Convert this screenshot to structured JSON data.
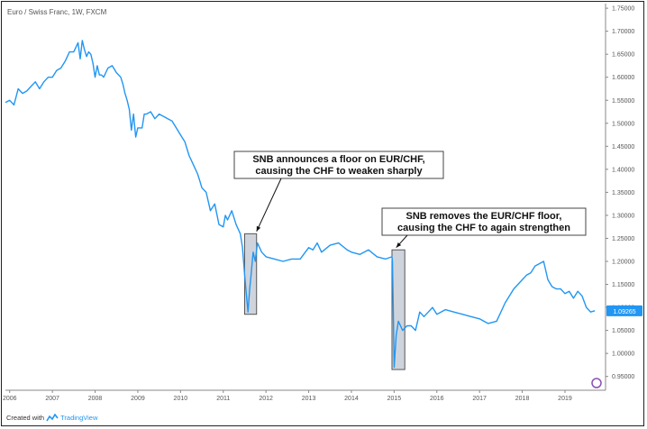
{
  "header": {
    "title": "Euro / Swiss Franc, 1W, FXCM"
  },
  "footer": {
    "created_with": "Created with",
    "brand": "TradingView"
  },
  "colors": {
    "line": "#2196f3",
    "box_fill": "#cfd4dc",
    "box_stroke": "#555555",
    "price_label_bg": "#2196f3"
  },
  "chart_data": {
    "type": "line",
    "title": "Euro / Swiss Franc, 1W, FXCM",
    "xlabel": "",
    "ylabel": "",
    "x_ticks": [
      "2006",
      "2007",
      "2008",
      "2009",
      "2010",
      "2011",
      "2012",
      "2013",
      "2014",
      "2015",
      "2016",
      "2017",
      "2018",
      "2019"
    ],
    "y_ticks": [
      "1.75000",
      "1.70000",
      "1.65000",
      "1.60000",
      "1.55000",
      "1.50000",
      "1.45000",
      "1.40000",
      "1.35000",
      "1.30000",
      "1.25000",
      "1.20000",
      "1.15000",
      "1.10000",
      "1.05000",
      "1.00000",
      "0.95000"
    ],
    "ylim": [
      0.92,
      1.76
    ],
    "xlim": [
      2005.9,
      2019.95
    ],
    "grid": false,
    "last_price_label": "1.09265",
    "series": [
      {
        "x": [
          2005.9,
          2006.0,
          2006.1,
          2006.2,
          2006.3,
          2006.4,
          2006.5,
          2006.6,
          2006.7,
          2006.8,
          2006.9,
          2007.0,
          2007.1,
          2007.2,
          2007.3,
          2007.4,
          2007.5,
          2007.6,
          2007.65,
          2007.7,
          2007.75,
          2007.8,
          2007.85,
          2007.9,
          2007.95,
          2008.0,
          2008.05,
          2008.1,
          2008.15,
          2008.2,
          2008.3,
          2008.4,
          2008.5,
          2008.6,
          2008.65,
          2008.7,
          2008.75,
          2008.8,
          2008.85,
          2008.9,
          2008.95,
          2009.0,
          2009.1,
          2009.15,
          2009.2,
          2009.3,
          2009.4,
          2009.5,
          2009.6,
          2009.7,
          2009.8,
          2009.9,
          2010.0,
          2010.1,
          2010.2,
          2010.3,
          2010.4,
          2010.45,
          2010.5,
          2010.6,
          2010.7,
          2010.8,
          2010.9,
          2011.0,
          2011.05,
          2011.1,
          2011.2,
          2011.3,
          2011.4,
          2011.45,
          2011.5,
          2011.55,
          2011.58,
          2011.62,
          2011.65,
          2011.7,
          2011.75,
          2011.8,
          2011.9,
          2012.0,
          2012.2,
          2012.4,
          2012.6,
          2012.8,
          2013.0,
          2013.1,
          2013.2,
          2013.3,
          2013.5,
          2013.7,
          2013.9,
          2014.0,
          2014.2,
          2014.4,
          2014.6,
          2014.8,
          2014.95,
          2014.96,
          2014.98,
          2015.0,
          2015.05,
          2015.1,
          2015.2,
          2015.3,
          2015.4,
          2015.5,
          2015.6,
          2015.7,
          2015.8,
          2015.9,
          2016.0,
          2016.2,
          2016.4,
          2016.6,
          2016.8,
          2017.0,
          2017.2,
          2017.4,
          2017.6,
          2017.8,
          2018.0,
          2018.1,
          2018.2,
          2018.3,
          2018.4,
          2018.5,
          2018.6,
          2018.7,
          2018.8,
          2018.9,
          2019.0,
          2019.1,
          2019.2,
          2019.3,
          2019.4,
          2019.5,
          2019.6,
          2019.7
        ],
        "y": [
          1.545,
          1.55,
          1.54,
          1.575,
          1.565,
          1.57,
          1.58,
          1.59,
          1.575,
          1.59,
          1.6,
          1.6,
          1.615,
          1.62,
          1.635,
          1.655,
          1.655,
          1.675,
          1.64,
          1.68,
          1.66,
          1.645,
          1.655,
          1.65,
          1.63,
          1.6,
          1.625,
          1.605,
          1.605,
          1.6,
          1.62,
          1.625,
          1.61,
          1.6,
          1.585,
          1.565,
          1.55,
          1.53,
          1.485,
          1.52,
          1.47,
          1.49,
          1.49,
          1.52,
          1.52,
          1.525,
          1.51,
          1.52,
          1.515,
          1.51,
          1.505,
          1.49,
          1.475,
          1.46,
          1.43,
          1.41,
          1.39,
          1.375,
          1.36,
          1.35,
          1.31,
          1.325,
          1.28,
          1.275,
          1.3,
          1.29,
          1.31,
          1.28,
          1.26,
          1.23,
          1.17,
          1.12,
          1.09,
          1.14,
          1.17,
          1.22,
          1.2,
          1.24,
          1.22,
          1.21,
          1.205,
          1.2,
          1.205,
          1.205,
          1.23,
          1.225,
          1.24,
          1.22,
          1.235,
          1.24,
          1.225,
          1.22,
          1.215,
          1.225,
          1.21,
          1.205,
          1.21,
          1.2,
          1.1,
          0.97,
          1.04,
          1.07,
          1.05,
          1.06,
          1.06,
          1.05,
          1.09,
          1.08,
          1.09,
          1.1,
          1.085,
          1.095,
          1.09,
          1.085,
          1.08,
          1.075,
          1.065,
          1.07,
          1.11,
          1.14,
          1.16,
          1.17,
          1.175,
          1.19,
          1.195,
          1.2,
          1.16,
          1.145,
          1.14,
          1.14,
          1.13,
          1.135,
          1.12,
          1.135,
          1.125,
          1.1,
          1.09,
          1.09265
        ]
      }
    ],
    "annotations": [
      {
        "lines": [
          "SNB announces a floor on EUR/CHF,",
          "causing the CHF to weaken sharply"
        ],
        "highlight_x": [
          2011.5,
          2011.78
        ],
        "highlight_y": [
          1.085,
          1.26
        ],
        "arrow_to_x": 2011.78,
        "arrow_to_y": 1.265
      },
      {
        "lines": [
          "SNB removes the EUR/CHF floor,",
          "causing the CHF to again strengthen"
        ],
        "highlight_x": [
          2014.95,
          2015.25
        ],
        "highlight_y": [
          0.965,
          1.225
        ],
        "arrow_to_x": 2015.05,
        "arrow_to_y": 1.23
      }
    ]
  }
}
